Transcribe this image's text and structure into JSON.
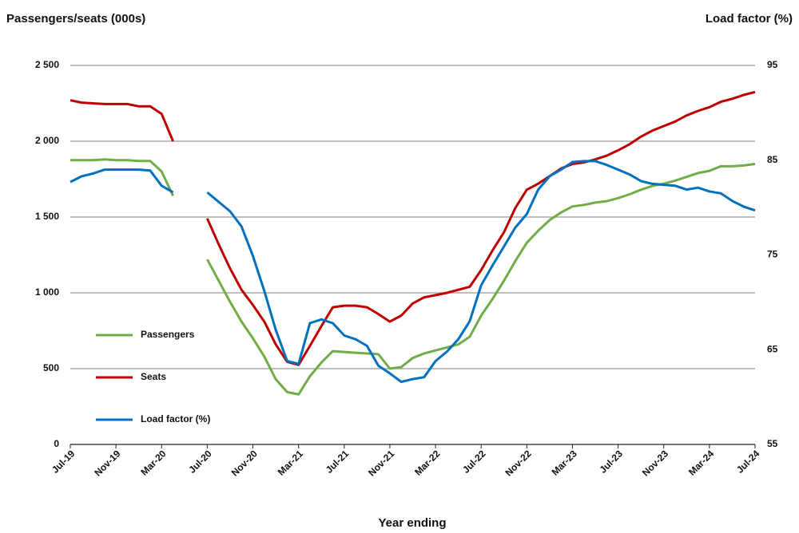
{
  "chart_data": {
    "type": "line",
    "y_label": "Passengers/seats (000s)",
    "y2_label": "Load factor (%)",
    "x_label": "Year ending",
    "categories": [
      "Jul-19",
      null,
      null,
      null,
      "Nov-19",
      null,
      null,
      null,
      "Mar-20",
      null,
      null,
      null,
      "Jul-20",
      null,
      null,
      null,
      "Nov-20",
      null,
      null,
      null,
      "Mar-21",
      null,
      null,
      null,
      "Jul-21",
      null,
      null,
      null,
      "Nov-21",
      null,
      null,
      null,
      "Mar-22",
      null,
      null,
      null,
      "Jul-22",
      null,
      null,
      null,
      "Nov-22",
      null,
      null,
      null,
      "Mar-23",
      null,
      null,
      null,
      "Jul-23",
      null,
      null,
      null,
      "Nov-23",
      null,
      null,
      null,
      "Mar-24",
      null,
      null,
      null,
      "Jul-24"
    ],
    "series": [
      {
        "name": "Passengers",
        "color": "#70ad47",
        "values": [
          1875,
          1875,
          1875,
          1880,
          1875,
          1875,
          1870,
          1870,
          1800,
          1640,
          null,
          null,
          1220,
          1080,
          940,
          810,
          700,
          580,
          430,
          345,
          330,
          450,
          540,
          615,
          610,
          605,
          600,
          595,
          500,
          510,
          570,
          600,
          620,
          640,
          660,
          710,
          850,
          960,
          1080,
          1210,
          1330,
          1410,
          1480,
          1530,
          1570,
          1580,
          1595,
          1605,
          1625,
          1650,
          1680,
          1705,
          1720,
          1740,
          1765,
          1790,
          1805,
          1835,
          1835,
          1840,
          1850
        ]
      },
      {
        "name": "Seats",
        "color": "#c00000",
        "values": [
          2270,
          2255,
          2250,
          2245,
          2245,
          2245,
          2230,
          2230,
          2180,
          2000,
          null,
          null,
          1490,
          1320,
          1160,
          1020,
          920,
          810,
          660,
          545,
          525,
          650,
          780,
          905,
          915,
          915,
          905,
          860,
          810,
          850,
          930,
          970,
          985,
          1000,
          1020,
          1040,
          1150,
          1280,
          1400,
          1560,
          1680,
          1720,
          1770,
          1820,
          1850,
          1860,
          1880,
          1905,
          1940,
          1980,
          2030,
          2070,
          2100,
          2130,
          2170,
          2200,
          2225,
          2260,
          2280,
          2305,
          2325
        ]
      },
      {
        "name": "Load factor (%)",
        "color": "#0070c0",
        "axis": "y2",
        "values": [
          82.7,
          83.3,
          83.6,
          84.0,
          84.0,
          84.0,
          84.0,
          83.9,
          82.3,
          81.6,
          null,
          null,
          81.6,
          80.6,
          79.6,
          78.0,
          74.9,
          71.2,
          67.1,
          63.8,
          63.5,
          67.8,
          68.2,
          67.8,
          66.5,
          66.1,
          65.4,
          63.3,
          62.5,
          61.6,
          61.9,
          62.1,
          63.8,
          64.8,
          66.1,
          68.0,
          71.8,
          73.9,
          75.9,
          77.9,
          79.3,
          81.9,
          83.3,
          84.0,
          84.8,
          84.9,
          84.9,
          84.5,
          84.0,
          83.5,
          82.8,
          82.5,
          82.4,
          82.3,
          81.9,
          82.1,
          81.7,
          81.5,
          80.7,
          80.1,
          79.7
        ]
      }
    ],
    "ylim": [
      0,
      2500
    ],
    "yticks": [
      0,
      500,
      {
        "value": 1000,
        "label": "1 000"
      },
      {
        "value": 1500,
        "label": "1 500"
      },
      {
        "value": 2000,
        "label": "2 000"
      },
      {
        "value": 2500,
        "label": "2 500"
      }
    ],
    "y2lim": [
      55,
      95
    ],
    "y2ticks": [
      55,
      65,
      75,
      85,
      95
    ],
    "grid": true,
    "legend": "left"
  }
}
